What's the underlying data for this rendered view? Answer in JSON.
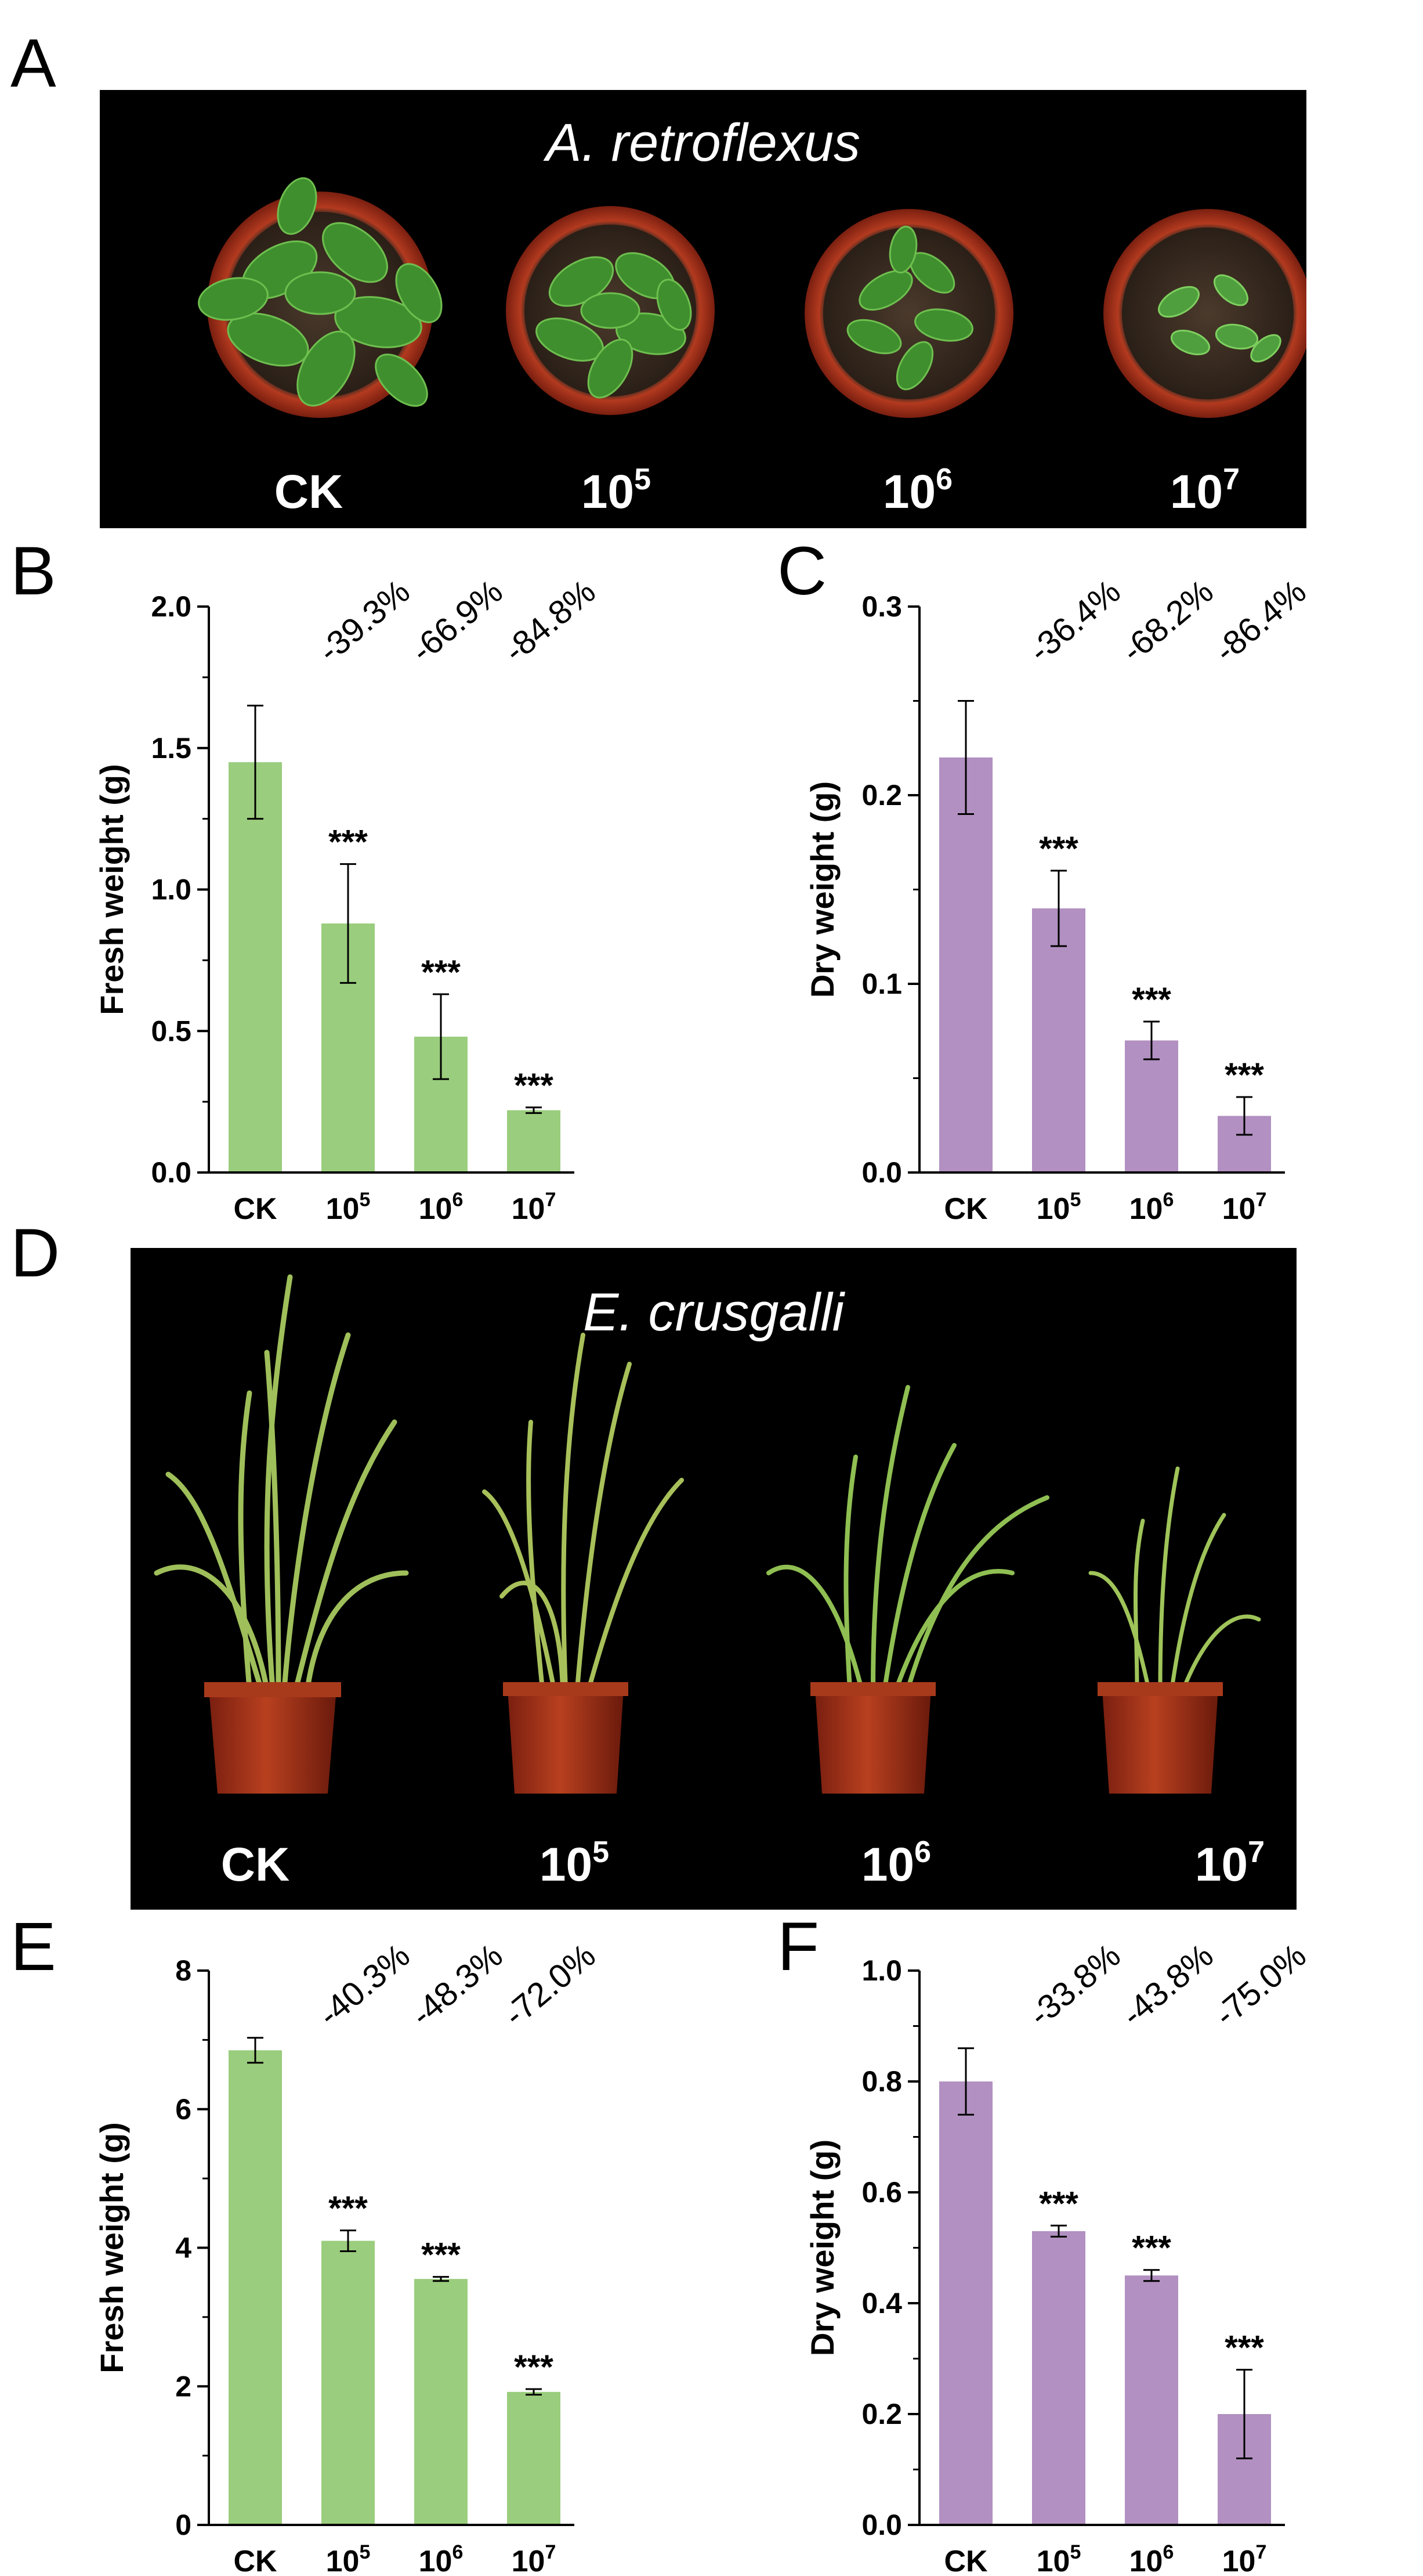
{
  "panels": {
    "a": "A",
    "b": "B",
    "c": "C",
    "d": "D",
    "e": "E",
    "f": "F"
  },
  "photo_a": {
    "title": "A. retroflexus",
    "labels": [
      {
        "base": "CK",
        "exp": ""
      },
      {
        "base": "10",
        "exp": "5"
      },
      {
        "base": "10",
        "exp": "6"
      },
      {
        "base": "10",
        "exp": "7"
      }
    ]
  },
  "photo_d": {
    "title": "E. crusgalli",
    "labels": [
      {
        "base": "CK",
        "exp": ""
      },
      {
        "base": "10",
        "exp": "5"
      },
      {
        "base": "10",
        "exp": "6"
      },
      {
        "base": "10",
        "exp": "7"
      }
    ]
  },
  "colors": {
    "green": "#9acd7d",
    "purple": "#b290c1",
    "axis": "#000000"
  },
  "chart_data": [
    {
      "id": "B",
      "type": "bar",
      "ylabel": "Fresh weight (g)",
      "color": "green",
      "categories": [
        {
          "base": "CK",
          "exp": ""
        },
        {
          "base": "10",
          "exp": "5"
        },
        {
          "base": "10",
          "exp": "6"
        },
        {
          "base": "10",
          "exp": "7"
        }
      ],
      "values": [
        1.45,
        0.88,
        0.48,
        0.22
      ],
      "errors": [
        0.2,
        0.21,
        0.15,
        0.01
      ],
      "significance": [
        "",
        "***",
        "***",
        "***"
      ],
      "changes": [
        "-39.3%",
        "-66.9%",
        "-84.8%"
      ],
      "ylim": [
        0,
        2.0
      ],
      "yticks": [
        "0.0",
        "0.5",
        "1.0",
        "1.5",
        "2.0"
      ],
      "yminor": 0.25
    },
    {
      "id": "C",
      "type": "bar",
      "ylabel": "Dry weight (g)",
      "color": "purple",
      "categories": [
        {
          "base": "CK",
          "exp": ""
        },
        {
          "base": "10",
          "exp": "5"
        },
        {
          "base": "10",
          "exp": "6"
        },
        {
          "base": "10",
          "exp": "7"
        }
      ],
      "values": [
        0.22,
        0.14,
        0.07,
        0.03
      ],
      "errors": [
        0.03,
        0.02,
        0.01,
        0.01
      ],
      "significance": [
        "",
        "***",
        "***",
        "***"
      ],
      "changes": [
        "-36.4%",
        "-68.2%",
        "-86.4%"
      ],
      "ylim": [
        0,
        0.3
      ],
      "yticks": [
        "0.0",
        "0.1",
        "0.2",
        "0.3"
      ],
      "yminor": 0.05
    },
    {
      "id": "E",
      "type": "bar",
      "ylabel": "Fresh weight (g)",
      "color": "green",
      "categories": [
        {
          "base": "CK",
          "exp": ""
        },
        {
          "base": "10",
          "exp": "5"
        },
        {
          "base": "10",
          "exp": "6"
        },
        {
          "base": "10",
          "exp": "7"
        }
      ],
      "values": [
        6.85,
        4.1,
        3.55,
        1.92
      ],
      "errors": [
        0.18,
        0.15,
        0.03,
        0.04
      ],
      "significance": [
        "",
        "***",
        "***",
        "***"
      ],
      "changes": [
        "-40.3%",
        "-48.3%",
        "-72.0%"
      ],
      "ylim": [
        0,
        8
      ],
      "yticks": [
        "0",
        "2",
        "4",
        "6",
        "8"
      ],
      "yminor": 1
    },
    {
      "id": "F",
      "type": "bar",
      "ylabel": "Dry weight (g)",
      "color": "purple",
      "categories": [
        {
          "base": "CK",
          "exp": ""
        },
        {
          "base": "10",
          "exp": "5"
        },
        {
          "base": "10",
          "exp": "6"
        },
        {
          "base": "10",
          "exp": "7"
        }
      ],
      "values": [
        0.8,
        0.53,
        0.45,
        0.2
      ],
      "errors": [
        0.06,
        0.01,
        0.01,
        0.08
      ],
      "significance": [
        "",
        "***",
        "***",
        "***"
      ],
      "changes": [
        "-33.8%",
        "-43.8%",
        "-75.0%"
      ],
      "ylim": [
        0,
        1.0
      ],
      "yticks": [
        "0.0",
        "0.2",
        "0.4",
        "0.6",
        "0.8",
        "1.0"
      ],
      "yminor": 0.1
    }
  ]
}
